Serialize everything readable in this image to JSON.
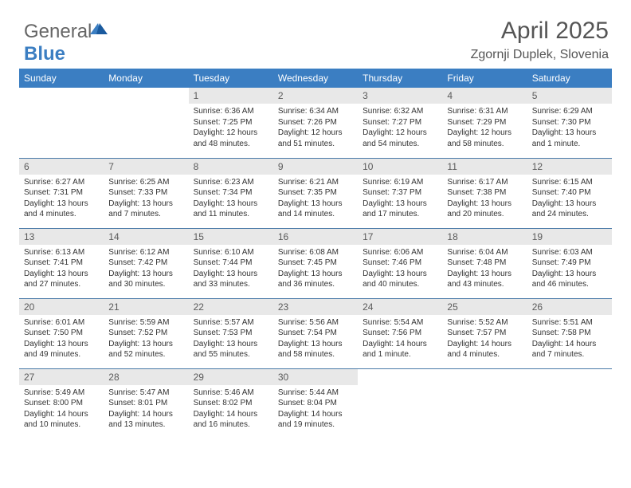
{
  "logo": {
    "part1": "General",
    "part2": "Blue"
  },
  "header": {
    "month_title": "April 2025",
    "location": "Zgornji Duplek, Slovenia"
  },
  "colors": {
    "header_bg": "#3b7ec2",
    "header_text": "#ffffff",
    "daynum_bg": "#e8e8e8",
    "daynum_text": "#5a5a5a",
    "row_border": "#4a7aa8",
    "body_text": "#333333",
    "title_text": "#555555"
  },
  "typography": {
    "title_fontsize": 30,
    "location_fontsize": 16,
    "weekday_fontsize": 12,
    "daynum_fontsize": 12,
    "cell_fontsize": 10
  },
  "weekdays": [
    "Sunday",
    "Monday",
    "Tuesday",
    "Wednesday",
    "Thursday",
    "Friday",
    "Saturday"
  ],
  "weeks": [
    [
      null,
      null,
      {
        "n": "1",
        "sunrise": "Sunrise: 6:36 AM",
        "sunset": "Sunset: 7:25 PM",
        "day1": "Daylight: 12 hours",
        "day2": "and 48 minutes."
      },
      {
        "n": "2",
        "sunrise": "Sunrise: 6:34 AM",
        "sunset": "Sunset: 7:26 PM",
        "day1": "Daylight: 12 hours",
        "day2": "and 51 minutes."
      },
      {
        "n": "3",
        "sunrise": "Sunrise: 6:32 AM",
        "sunset": "Sunset: 7:27 PM",
        "day1": "Daylight: 12 hours",
        "day2": "and 54 minutes."
      },
      {
        "n": "4",
        "sunrise": "Sunrise: 6:31 AM",
        "sunset": "Sunset: 7:29 PM",
        "day1": "Daylight: 12 hours",
        "day2": "and 58 minutes."
      },
      {
        "n": "5",
        "sunrise": "Sunrise: 6:29 AM",
        "sunset": "Sunset: 7:30 PM",
        "day1": "Daylight: 13 hours",
        "day2": "and 1 minute."
      }
    ],
    [
      {
        "n": "6",
        "sunrise": "Sunrise: 6:27 AM",
        "sunset": "Sunset: 7:31 PM",
        "day1": "Daylight: 13 hours",
        "day2": "and 4 minutes."
      },
      {
        "n": "7",
        "sunrise": "Sunrise: 6:25 AM",
        "sunset": "Sunset: 7:33 PM",
        "day1": "Daylight: 13 hours",
        "day2": "and 7 minutes."
      },
      {
        "n": "8",
        "sunrise": "Sunrise: 6:23 AM",
        "sunset": "Sunset: 7:34 PM",
        "day1": "Daylight: 13 hours",
        "day2": "and 11 minutes."
      },
      {
        "n": "9",
        "sunrise": "Sunrise: 6:21 AM",
        "sunset": "Sunset: 7:35 PM",
        "day1": "Daylight: 13 hours",
        "day2": "and 14 minutes."
      },
      {
        "n": "10",
        "sunrise": "Sunrise: 6:19 AM",
        "sunset": "Sunset: 7:37 PM",
        "day1": "Daylight: 13 hours",
        "day2": "and 17 minutes."
      },
      {
        "n": "11",
        "sunrise": "Sunrise: 6:17 AM",
        "sunset": "Sunset: 7:38 PM",
        "day1": "Daylight: 13 hours",
        "day2": "and 20 minutes."
      },
      {
        "n": "12",
        "sunrise": "Sunrise: 6:15 AM",
        "sunset": "Sunset: 7:40 PM",
        "day1": "Daylight: 13 hours",
        "day2": "and 24 minutes."
      }
    ],
    [
      {
        "n": "13",
        "sunrise": "Sunrise: 6:13 AM",
        "sunset": "Sunset: 7:41 PM",
        "day1": "Daylight: 13 hours",
        "day2": "and 27 minutes."
      },
      {
        "n": "14",
        "sunrise": "Sunrise: 6:12 AM",
        "sunset": "Sunset: 7:42 PM",
        "day1": "Daylight: 13 hours",
        "day2": "and 30 minutes."
      },
      {
        "n": "15",
        "sunrise": "Sunrise: 6:10 AM",
        "sunset": "Sunset: 7:44 PM",
        "day1": "Daylight: 13 hours",
        "day2": "and 33 minutes."
      },
      {
        "n": "16",
        "sunrise": "Sunrise: 6:08 AM",
        "sunset": "Sunset: 7:45 PM",
        "day1": "Daylight: 13 hours",
        "day2": "and 36 minutes."
      },
      {
        "n": "17",
        "sunrise": "Sunrise: 6:06 AM",
        "sunset": "Sunset: 7:46 PM",
        "day1": "Daylight: 13 hours",
        "day2": "and 40 minutes."
      },
      {
        "n": "18",
        "sunrise": "Sunrise: 6:04 AM",
        "sunset": "Sunset: 7:48 PM",
        "day1": "Daylight: 13 hours",
        "day2": "and 43 minutes."
      },
      {
        "n": "19",
        "sunrise": "Sunrise: 6:03 AM",
        "sunset": "Sunset: 7:49 PM",
        "day1": "Daylight: 13 hours",
        "day2": "and 46 minutes."
      }
    ],
    [
      {
        "n": "20",
        "sunrise": "Sunrise: 6:01 AM",
        "sunset": "Sunset: 7:50 PM",
        "day1": "Daylight: 13 hours",
        "day2": "and 49 minutes."
      },
      {
        "n": "21",
        "sunrise": "Sunrise: 5:59 AM",
        "sunset": "Sunset: 7:52 PM",
        "day1": "Daylight: 13 hours",
        "day2": "and 52 minutes."
      },
      {
        "n": "22",
        "sunrise": "Sunrise: 5:57 AM",
        "sunset": "Sunset: 7:53 PM",
        "day1": "Daylight: 13 hours",
        "day2": "and 55 minutes."
      },
      {
        "n": "23",
        "sunrise": "Sunrise: 5:56 AM",
        "sunset": "Sunset: 7:54 PM",
        "day1": "Daylight: 13 hours",
        "day2": "and 58 minutes."
      },
      {
        "n": "24",
        "sunrise": "Sunrise: 5:54 AM",
        "sunset": "Sunset: 7:56 PM",
        "day1": "Daylight: 14 hours",
        "day2": "and 1 minute."
      },
      {
        "n": "25",
        "sunrise": "Sunrise: 5:52 AM",
        "sunset": "Sunset: 7:57 PM",
        "day1": "Daylight: 14 hours",
        "day2": "and 4 minutes."
      },
      {
        "n": "26",
        "sunrise": "Sunrise: 5:51 AM",
        "sunset": "Sunset: 7:58 PM",
        "day1": "Daylight: 14 hours",
        "day2": "and 7 minutes."
      }
    ],
    [
      {
        "n": "27",
        "sunrise": "Sunrise: 5:49 AM",
        "sunset": "Sunset: 8:00 PM",
        "day1": "Daylight: 14 hours",
        "day2": "and 10 minutes."
      },
      {
        "n": "28",
        "sunrise": "Sunrise: 5:47 AM",
        "sunset": "Sunset: 8:01 PM",
        "day1": "Daylight: 14 hours",
        "day2": "and 13 minutes."
      },
      {
        "n": "29",
        "sunrise": "Sunrise: 5:46 AM",
        "sunset": "Sunset: 8:02 PM",
        "day1": "Daylight: 14 hours",
        "day2": "and 16 minutes."
      },
      {
        "n": "30",
        "sunrise": "Sunrise: 5:44 AM",
        "sunset": "Sunset: 8:04 PM",
        "day1": "Daylight: 14 hours",
        "day2": "and 19 minutes."
      },
      null,
      null,
      null
    ]
  ]
}
